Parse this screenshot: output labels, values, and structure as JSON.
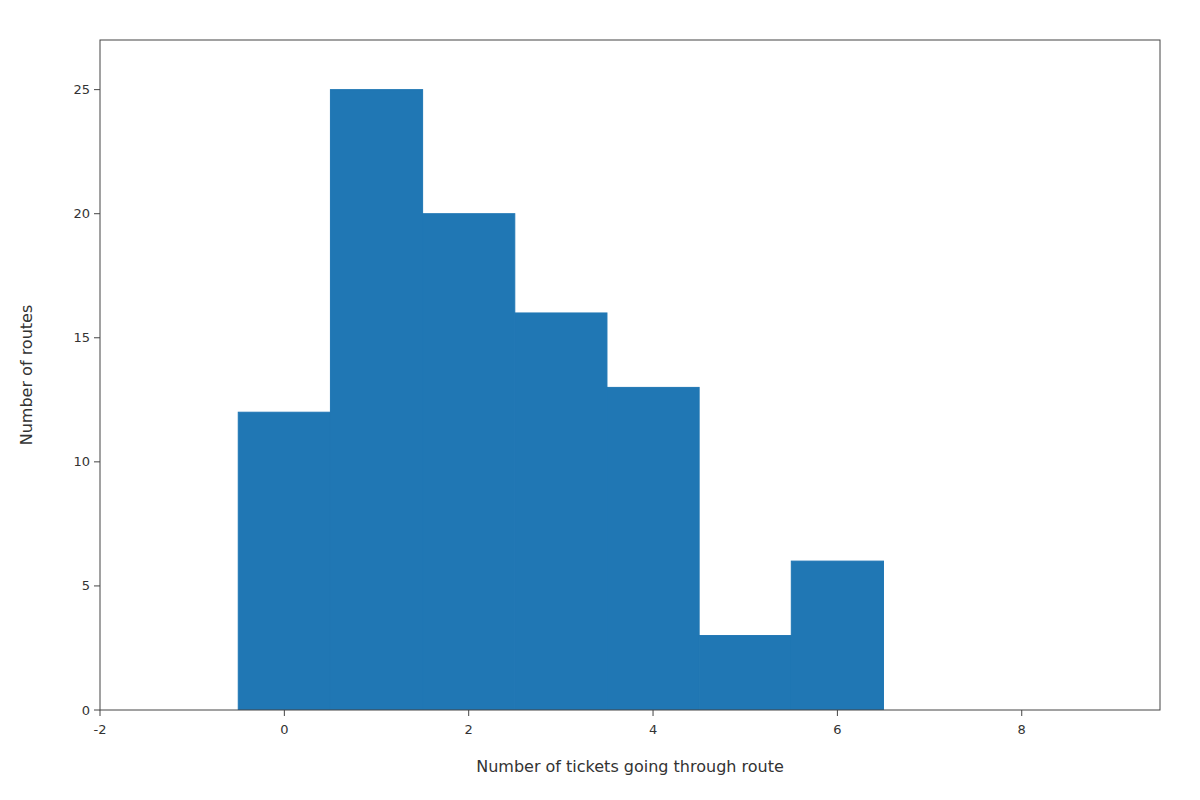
{
  "chart_data": {
    "type": "histogram",
    "bins": [
      -0.5,
      0.5,
      1.5,
      2.5,
      3.5,
      4.5,
      5.5,
      6.5,
      7.5
    ],
    "values": [
      12,
      25,
      20,
      16,
      13,
      3,
      6,
      0
    ],
    "color": "#2077b4",
    "xlabel": "Number of tickets going through route",
    "ylabel": "Number of routes",
    "xlim": [
      -2,
      9.5
    ],
    "ylim": [
      0,
      27
    ],
    "xticks": [
      -2,
      0,
      2,
      4,
      6,
      8
    ],
    "yticks": [
      0,
      5,
      10,
      15,
      20,
      25
    ],
    "grid": false
  }
}
